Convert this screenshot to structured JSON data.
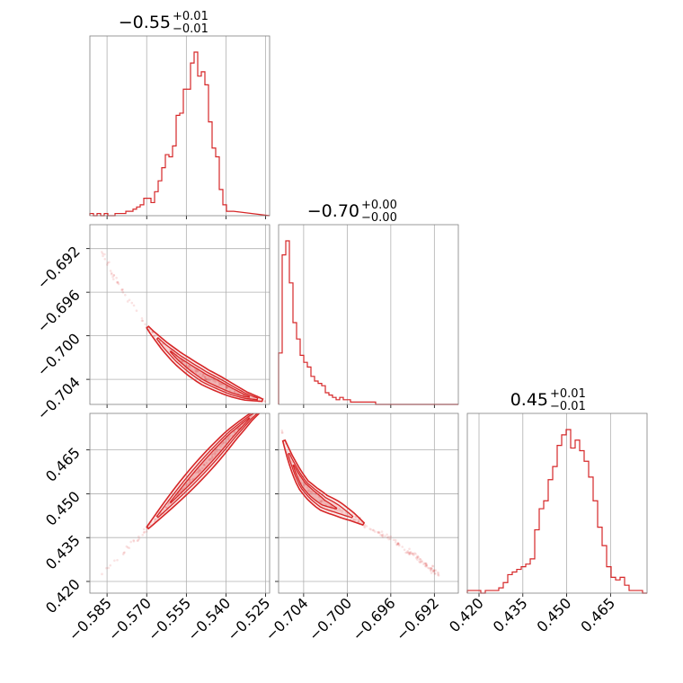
{
  "chart_data": {
    "type": "corner",
    "color": "#d62728",
    "parameters": [
      {
        "title_value": "−0.55",
        "title_plus": "+0.01",
        "title_minus": "−0.01"
      },
      {
        "title_value": "−0.70",
        "title_plus": "+0.00",
        "title_minus": "−0.00"
      },
      {
        "title_value": "0.45",
        "title_plus": "+0.01",
        "title_minus": "−0.01"
      }
    ],
    "x_ticks": [
      {
        "values": [
          -0.585,
          -0.57,
          -0.555,
          -0.54,
          -0.525
        ],
        "labels": [
          "−0.585",
          "−0.570",
          "−0.555",
          "−0.540",
          "−0.525"
        ]
      },
      {
        "values": [
          -0.704,
          -0.7,
          -0.696,
          -0.692
        ],
        "labels": [
          "−0.704",
          "−0.700",
          "−0.696",
          "−0.692"
        ]
      },
      {
        "values": [
          0.42,
          0.435,
          0.45,
          0.465
        ],
        "labels": [
          "0.420",
          "0.435",
          "0.450",
          "0.465"
        ]
      }
    ],
    "y_ticks": {
      "row1": {
        "values": [
          -0.692,
          -0.696,
          -0.7,
          -0.704
        ],
        "labels": [
          "−0.692",
          "−0.696",
          "−0.700",
          "−0.704"
        ]
      },
      "row2": {
        "values": [
          0.465,
          0.45,
          0.435,
          0.42
        ],
        "labels": [
          "0.465",
          "0.450",
          "0.435",
          "0.420"
        ]
      }
    },
    "ranges": [
      [
        -0.5915,
        -0.5235
      ],
      [
        -0.7063,
        -0.6898
      ],
      [
        0.416,
        0.4775
      ]
    ],
    "histograms": [
      {
        "bin_edges_start": -0.5915,
        "bin_width": 0.00136,
        "counts": [
          1,
          0,
          1,
          0,
          1,
          0,
          0,
          1,
          1,
          1,
          2,
          2,
          3,
          4,
          5,
          8,
          8,
          6,
          11,
          16,
          22,
          28,
          27,
          32,
          46,
          47,
          58,
          58,
          70,
          75,
          64,
          66,
          60,
          43,
          31,
          27,
          12,
          5,
          2,
          2
        ]
      },
      {
        "bin_edges_start": -0.7063,
        "bin_width": 0.00033,
        "counts": [
          22,
          64,
          70,
          52,
          35,
          28,
          21,
          18,
          16,
          12,
          10,
          9,
          8,
          5,
          4,
          3,
          2,
          3,
          2,
          2,
          1,
          1,
          1,
          1,
          1,
          1,
          1,
          0,
          0,
          0,
          0,
          0,
          0,
          0,
          0,
          0,
          0,
          0,
          0,
          0
        ]
      },
      {
        "bin_edges_start": 0.416,
        "bin_width": 0.0015375,
        "counts": [
          1,
          1,
          1,
          0,
          1,
          1,
          1,
          2,
          4,
          7,
          8,
          9,
          10,
          11,
          13,
          24,
          32,
          35,
          43,
          48,
          56,
          60,
          62,
          55,
          58,
          54,
          50,
          44,
          35,
          25,
          18,
          10,
          6,
          5,
          6,
          3,
          1,
          1,
          1,
          0
        ]
      }
    ],
    "pairs": [
      {
        "row": 1,
        "col": 0,
        "x": [
          -0.587,
          -0.583,
          -0.578,
          -0.573,
          -0.568,
          -0.563,
          -0.558,
          -0.553,
          -0.548,
          -0.543,
          -0.538,
          -0.533,
          -0.528,
          -0.525
        ],
        "y": [
          -0.6923,
          -0.6942,
          -0.6963,
          -0.6982,
          -0.6997,
          -0.701,
          -0.7021,
          -0.703,
          -0.7038,
          -0.7044,
          -0.705,
          -0.7055,
          -0.7058,
          -0.706
        ]
      },
      {
        "row": 2,
        "col": 0,
        "x": [
          -0.587,
          -0.58,
          -0.573,
          -0.566,
          -0.559,
          -0.552,
          -0.545,
          -0.538,
          -0.531,
          -0.525
        ],
        "y": [
          0.423,
          0.429,
          0.435,
          0.442,
          0.449,
          0.456,
          0.463,
          0.47,
          0.476,
          0.48
        ]
      },
      {
        "row": 2,
        "col": 1,
        "x": [
          -0.7061,
          -0.7058,
          -0.7052,
          -0.7046,
          -0.704,
          -0.7032,
          -0.7022,
          -0.701,
          -0.6995,
          -0.6978,
          -0.6958,
          -0.6935,
          -0.6915
        ],
        "y": [
          0.474,
          0.468,
          0.462,
          0.457,
          0.453,
          0.45,
          0.447,
          0.445,
          0.442,
          0.438,
          0.434,
          0.428,
          0.422
        ]
      }
    ]
  }
}
